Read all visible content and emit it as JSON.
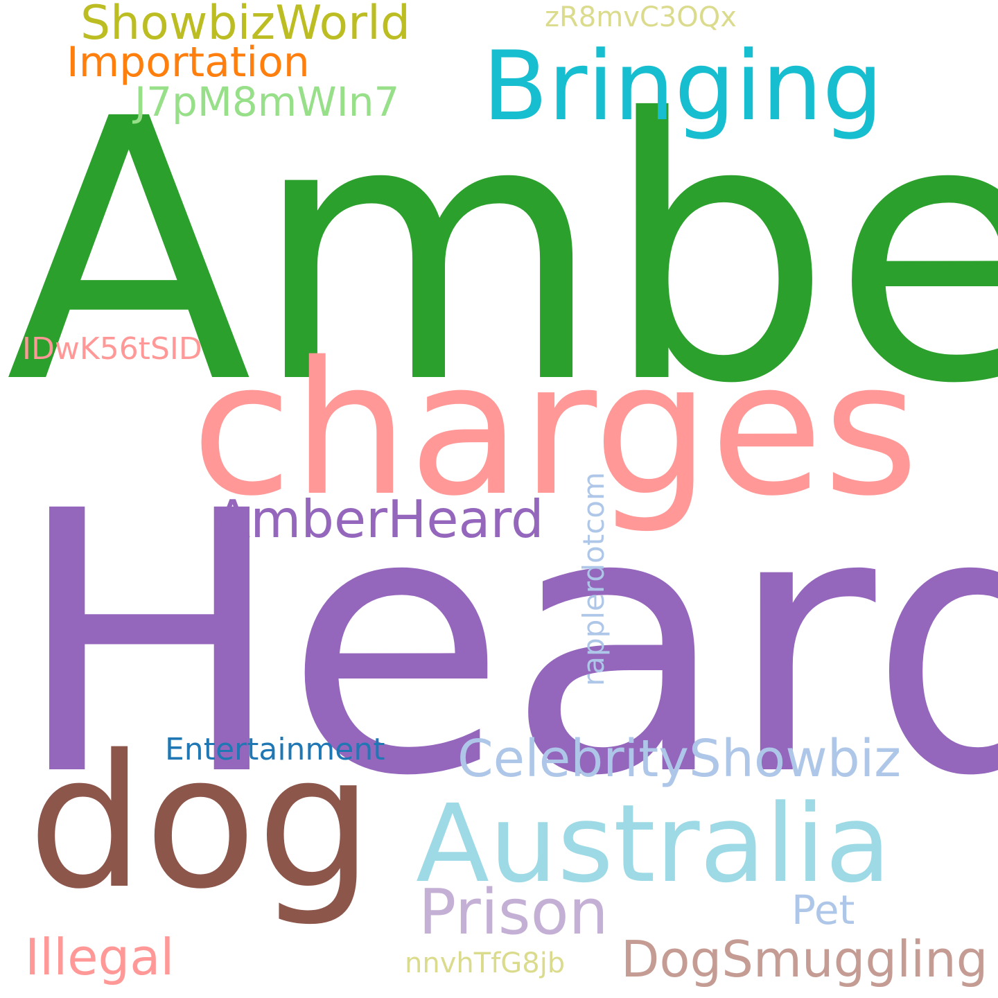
{
  "wordcloud": {
    "background": "#ffffff",
    "words": [
      {
        "text": "Amber",
        "color": "#2ca02c"
      },
      {
        "text": "Heard",
        "color": "#9467bd"
      },
      {
        "text": "charges",
        "color": "#ff9896"
      },
      {
        "text": "dog",
        "color": "#8c564b"
      },
      {
        "text": "Australia",
        "color": "#9edae5"
      },
      {
        "text": "Bringing",
        "color": "#17becf"
      },
      {
        "text": "Prison",
        "color": "#c5b0d5"
      },
      {
        "text": "CelebrityShowbiz",
        "color": "#aec7e8"
      },
      {
        "text": "AmberHeard",
        "color": "#9467bd"
      },
      {
        "text": "DogSmuggling",
        "color": "#c49c94"
      },
      {
        "text": "Illegal",
        "color": "#ff9896"
      },
      {
        "text": "ShowbizWorld",
        "color": "#bcbd22"
      },
      {
        "text": "Importation",
        "color": "#ff7f0e"
      },
      {
        "text": "J7pM8mWIn7",
        "color": "#98df8a"
      },
      {
        "text": "Entertainment",
        "color": "#1f77b4"
      },
      {
        "text": "Pet",
        "color": "#aec7e8"
      },
      {
        "text": "IDwK56tSID",
        "color": "#ff9896"
      },
      {
        "text": "zR8mvC3OQx",
        "color": "#dbdb8d"
      },
      {
        "text": "nnvhTfG8jb",
        "color": "#dbdb8d"
      },
      {
        "text": "rapplerdotcom",
        "color": "#aec7e8"
      }
    ]
  }
}
